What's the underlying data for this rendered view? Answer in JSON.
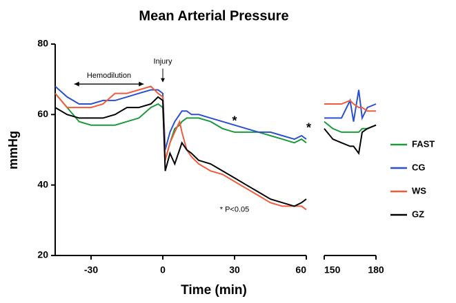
{
  "chart_data": {
    "type": "line",
    "title": "Mean Arterial Pressure",
    "xlabel": "Time (min)",
    "ylabel": "mmHg",
    "ylim": [
      20,
      80
    ],
    "yticks": [
      20,
      40,
      60,
      80
    ],
    "panels": [
      {
        "xlim": [
          -45,
          60
        ],
        "xticks": [
          -30,
          0,
          30,
          60
        ]
      },
      {
        "xlim": [
          150,
          180
        ],
        "xticks": [
          150,
          180
        ]
      }
    ],
    "x": [
      -45,
      -40,
      -35,
      -30,
      -25,
      -20,
      -15,
      -10,
      -5,
      -2,
      0,
      1,
      3,
      5,
      7,
      8,
      10,
      12,
      15,
      20,
      25,
      30,
      35,
      40,
      45,
      50,
      55,
      58,
      60,
      150,
      155,
      160,
      165,
      167,
      170,
      172,
      175,
      180
    ],
    "series": [
      {
        "name": "FAST",
        "color": "#1a9a3a",
        "values": [
          66,
          62,
          58,
          57,
          57,
          57,
          58,
          59,
          62,
          63,
          62,
          47,
          52,
          56,
          57,
          58,
          59,
          59,
          59,
          58,
          56,
          55,
          55,
          55,
          54,
          53,
          52,
          53,
          52,
          58,
          56,
          55,
          55,
          55,
          55,
          56,
          56,
          57
        ]
      },
      {
        "name": "CG",
        "color": "#2a4fd0",
        "values": [
          68,
          65,
          63,
          63,
          64,
          64,
          65,
          66,
          67,
          67,
          66,
          50,
          55,
          58,
          60,
          61,
          61,
          60,
          60,
          59,
          58,
          57,
          56,
          55,
          55,
          54,
          53,
          54,
          53,
          59,
          59,
          59,
          64,
          58,
          67,
          59,
          62,
          63
        ]
      },
      {
        "name": "WS",
        "color": "#f25a3c",
        "values": [
          66,
          62,
          62,
          62,
          63,
          66,
          66,
          67,
          68,
          66,
          65,
          47,
          52,
          55,
          58,
          55,
          50,
          48,
          46,
          44,
          43,
          41,
          39,
          37,
          35,
          34,
          34,
          34,
          33,
          63,
          63,
          63,
          64,
          63,
          62,
          62,
          61,
          61
        ]
      },
      {
        "name": "GZ",
        "color": "#000000",
        "values": [
          62,
          60,
          59,
          59,
          59,
          60,
          62,
          62,
          63,
          65,
          64,
          44,
          49,
          46,
          50,
          52,
          50,
          49,
          47,
          46,
          44,
          42,
          40,
          38,
          36,
          35,
          34,
          35,
          36,
          56,
          53,
          52,
          51,
          51,
          49,
          55,
          56,
          57
        ]
      }
    ],
    "legend": "right",
    "annotations": [
      {
        "text": "Hemodilution",
        "x": -22.5,
        "y": 71,
        "x_range": [
          -37,
          -8
        ]
      },
      {
        "text": "Injury",
        "x": 0,
        "y": 75
      },
      {
        "text": "*",
        "x": 30,
        "y": 58
      },
      {
        "text": "*",
        "x": 61,
        "y": 56
      },
      {
        "text": "* P<0.05",
        "x": 30,
        "y": 33
      }
    ]
  }
}
